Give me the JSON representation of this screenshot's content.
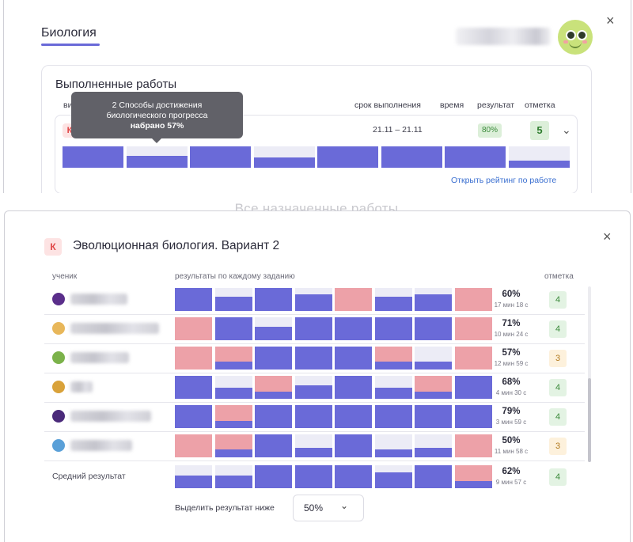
{
  "top": {
    "subject_tab": "Биология",
    "user_name": "Пользователь",
    "close_label": "×",
    "section_title": "Выполненные работы",
    "columns": {
      "type": "ви",
      "deadline": "срок выполнения",
      "time": "время",
      "result": "результат",
      "grade": "отметка"
    },
    "work": {
      "badge": "К",
      "date": "21.11 – 21.11",
      "result_percent": "80%",
      "grade": "5",
      "task_fill": [
        1,
        0.55,
        1,
        0.5,
        1,
        1,
        1,
        0.35
      ]
    },
    "tooltip": {
      "line1": "2 Способы достижения",
      "line2": "биологического прогресса",
      "line3": "набрано 57%"
    },
    "rating_link": "Открыть рейтинг по работе",
    "ghost_title": "Все назначенные работы"
  },
  "modal": {
    "badge": "К",
    "title": "Эволюционная биология. Вариант 2",
    "close_label": "×",
    "col_student": "ученик",
    "col_results": "результаты по каждому заданию",
    "col_grade": "отметка",
    "students": [
      {
        "name": "Ученик 1",
        "avatar_color": "#5a2e8a",
        "cells": [
          [
            "#6a6ad8",
            1
          ],
          [
            "#6a6ad8",
            0.62
          ],
          [
            "#6a6ad8",
            1
          ],
          [
            "#6a6ad8",
            0.72
          ],
          [
            "#eda1a8",
            1
          ],
          [
            "#6a6ad8",
            0.62
          ],
          [
            "#6a6ad8",
            0.72
          ],
          [
            "#eda1a8",
            1
          ]
        ],
        "percent": "60%",
        "time": "17 мин 18 с",
        "grade": "4",
        "grade_kind": "good"
      },
      {
        "name": "Ученик 2",
        "avatar_color": "#e8b75a",
        "cells": [
          [
            "#eda1a8",
            1
          ],
          [
            "#6a6ad8",
            1
          ],
          [
            "#6a6ad8",
            0.6
          ],
          [
            "#6a6ad8",
            1
          ],
          [
            "#6a6ad8",
            1
          ],
          [
            "#6a6ad8",
            1
          ],
          [
            "#6a6ad8",
            1
          ],
          [
            "#eda1a8",
            1
          ]
        ],
        "percent": "71%",
        "time": "10 мин 24 с",
        "grade": "4",
        "grade_kind": "good"
      },
      {
        "name": "Ученик 3",
        "avatar_color": "#7bb24a",
        "cells": [
          [
            "#eda1a8",
            1
          ],
          [
            "#6a6ad8",
            0.35,
            "#eda1a8"
          ],
          [
            "#6a6ad8",
            1
          ],
          [
            "#6a6ad8",
            1
          ],
          [
            "#6a6ad8",
            1
          ],
          [
            "#6a6ad8",
            0.35,
            "#eda1a8"
          ],
          [
            "#6a6ad8",
            0.35
          ],
          [
            "#eda1a8",
            1
          ]
        ],
        "percent": "57%",
        "time": "12 мин 59 с",
        "grade": "3",
        "grade_kind": "mid"
      },
      {
        "name": "Ученик 4",
        "avatar_color": "#d9a23a",
        "cells": [
          [
            "#6a6ad8",
            1
          ],
          [
            "#6a6ad8",
            0.5
          ],
          [
            "#6a6ad8",
            0.3,
            "#eda1a8"
          ],
          [
            "#6a6ad8",
            0.6
          ],
          [
            "#6a6ad8",
            1
          ],
          [
            "#6a6ad8",
            0.5
          ],
          [
            "#6a6ad8",
            0.3,
            "#eda1a8"
          ],
          [
            "#6a6ad8",
            1
          ]
        ],
        "percent": "68%",
        "time": "4 мин 30 с",
        "grade": "4",
        "grade_kind": "good"
      },
      {
        "name": "Ученик 5",
        "avatar_color": "#4a2a7a",
        "cells": [
          [
            "#6a6ad8",
            1
          ],
          [
            "#6a6ad8",
            0.3,
            "#eda1a8"
          ],
          [
            "#6a6ad8",
            1
          ],
          [
            "#6a6ad8",
            1
          ],
          [
            "#6a6ad8",
            1
          ],
          [
            "#6a6ad8",
            1
          ],
          [
            "#6a6ad8",
            1
          ],
          [
            "#6a6ad8",
            1
          ]
        ],
        "percent": "79%",
        "time": "3 мин 59 с",
        "grade": "4",
        "grade_kind": "good"
      },
      {
        "name": "Ученик 6",
        "avatar_color": "#5aa0d8",
        "cells": [
          [
            "#eda1a8",
            1
          ],
          [
            "#6a6ad8",
            0.35,
            "#eda1a8"
          ],
          [
            "#6a6ad8",
            1
          ],
          [
            "#6a6ad8",
            0.4
          ],
          [
            "#6a6ad8",
            1
          ],
          [
            "#6a6ad8",
            0.35
          ],
          [
            "#6a6ad8",
            0.4
          ],
          [
            "#eda1a8",
            1
          ]
        ],
        "percent": "50%",
        "time": "11 мин 58 с",
        "grade": "3",
        "grade_kind": "mid"
      }
    ],
    "average": {
      "label": "Средний результат",
      "cells": [
        [
          "#6a6ad8",
          0.55
        ],
        [
          "#6a6ad8",
          0.55
        ],
        [
          "#6a6ad8",
          1
        ],
        [
          "#6a6ad8",
          1
        ],
        [
          "#6a6ad8",
          1
        ],
        [
          "#6a6ad8",
          0.7
        ],
        [
          "#6a6ad8",
          1
        ],
        [
          "#6a6ad8",
          0.3,
          "#eda1a8"
        ]
      ],
      "percent": "62%",
      "time": "9 мин 57 с",
      "grade": "4",
      "grade_kind": "good"
    },
    "filter_label": "Выделить результат ниже",
    "filter_value": "50%",
    "colors": {
      "success": "#6a6ad8",
      "fail": "#eda1a8",
      "empty": "#ececf6"
    }
  }
}
